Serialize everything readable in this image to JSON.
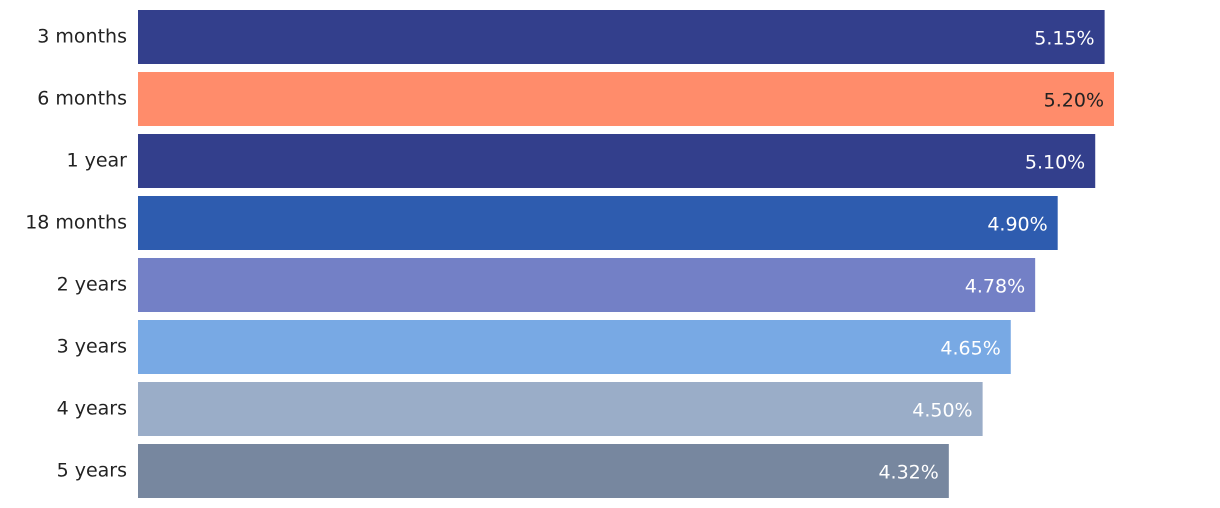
{
  "chart_data": {
    "type": "barh",
    "categories": [
      "3 months",
      "6 months",
      "1 year",
      "18 months",
      "2 years",
      "3 years",
      "4 years",
      "5 years"
    ],
    "values": [
      5.15,
      5.2,
      5.1,
      4.9,
      4.78,
      4.65,
      4.5,
      4.32
    ],
    "value_labels": [
      "5.15%",
      "5.20%",
      "5.10%",
      "4.90%",
      "4.78%",
      "4.65%",
      "4.50%",
      "4.32%"
    ],
    "colors": [
      "#333f8c",
      "#ff8c6b",
      "#333f8c",
      "#2e5caf",
      "#7380c6",
      "#78a9e4",
      "#9aadc8",
      "#77879f"
    ],
    "value_label_colors": [
      "#ffffff",
      "#222222",
      "#ffffff",
      "#ffffff",
      "#ffffff",
      "#ffffff",
      "#ffffff",
      "#ffffff"
    ]
  }
}
